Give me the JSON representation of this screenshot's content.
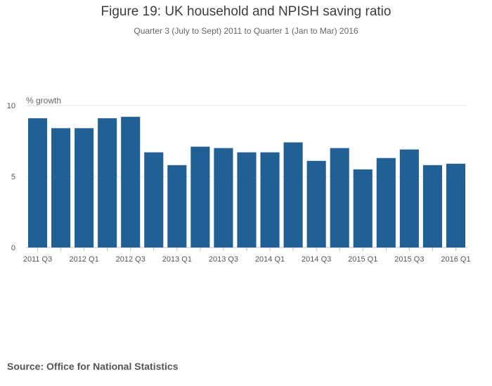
{
  "chart_data": {
    "type": "bar",
    "title": "Figure 19: UK household and NPISH saving ratio",
    "subtitle": "Quarter 3 (July to Sept) 2011 to Quarter 1 (Jan to Mar) 2016",
    "ylabel": "% growth",
    "xlabel": "",
    "ylim": [
      0,
      10
    ],
    "yticks": [
      0,
      5,
      10
    ],
    "grid": true,
    "bar_color": "#206095",
    "categories": [
      "2011 Q3",
      "2011 Q4",
      "2012 Q1",
      "2012 Q2",
      "2012 Q3",
      "2012 Q4",
      "2013 Q1",
      "2013 Q2",
      "2013 Q3",
      "2013 Q4",
      "2014 Q1",
      "2014 Q2",
      "2014 Q3",
      "2014 Q4",
      "2015 Q1",
      "2015 Q2",
      "2015 Q3",
      "2015 Q4",
      "2016 Q1"
    ],
    "xtick_labels": [
      "2011 Q3",
      "",
      "2012 Q1",
      "",
      "2012 Q3",
      "",
      "2013 Q1",
      "",
      "2013 Q3",
      "",
      "2014 Q1",
      "",
      "2014 Q3",
      "",
      "2015 Q1",
      "",
      "2015 Q3",
      "",
      "2016 Q1"
    ],
    "values": [
      9.1,
      8.4,
      8.4,
      9.1,
      9.2,
      6.7,
      5.8,
      7.1,
      7.0,
      6.7,
      6.7,
      7.4,
      6.1,
      7.0,
      5.5,
      6.3,
      6.9,
      5.8,
      5.9
    ]
  },
  "source": "Source: Office for National Statistics"
}
